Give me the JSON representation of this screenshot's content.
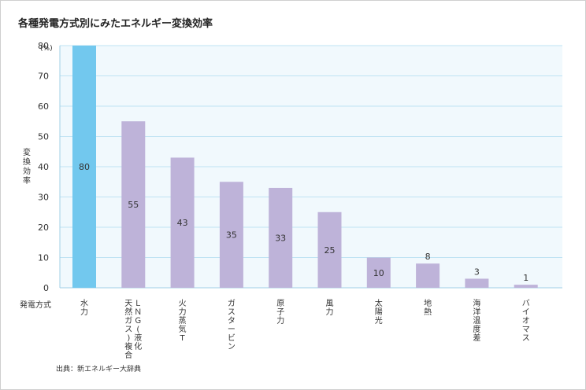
{
  "chart_data": {
    "type": "bar",
    "title": "各種発電方式別にみたエネルギー変換効率",
    "ylabel": "変換効率",
    "yunit": "(%)",
    "xlabel": "発電方式",
    "ylim": [
      0,
      80
    ],
    "yticks": [
      0,
      10,
      20,
      30,
      40,
      50,
      60,
      70,
      80
    ],
    "grid": true,
    "categories": [
      "水力",
      "ＬＮＧ(液化天然ガス)複合",
      "火力蒸気T",
      "ガスタービン",
      "原子力",
      "風力",
      "太陽光",
      "地熱",
      "海洋温度差",
      "バイオマス"
    ],
    "category_lines": [
      [
        "水力"
      ],
      [
        "ＬＮＧ(液化",
        "天然ガス)複合"
      ],
      [
        "火力蒸気T"
      ],
      [
        "ガスタービン"
      ],
      [
        "原子力"
      ],
      [
        "風力"
      ],
      [
        "太陽光"
      ],
      [
        "地熱"
      ],
      [
        "海洋温度差"
      ],
      [
        "バイオマス"
      ]
    ],
    "values": [
      80,
      55,
      43,
      35,
      33,
      25,
      10,
      8,
      3,
      1
    ],
    "labels": [
      "80",
      "55",
      "43",
      "35",
      "33",
      "25",
      "10",
      "8",
      "3",
      "1"
    ],
    "colors": {
      "highlight": "#72c8ee",
      "bar": "#beb3d9",
      "plot_bg": "#f1f9fd",
      "grid": "#bfe3f3"
    },
    "source": "出典：新エネルギー大辞典"
  }
}
